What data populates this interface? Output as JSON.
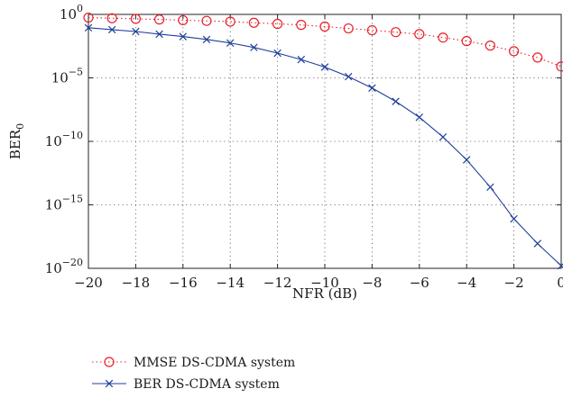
{
  "chart_data": {
    "type": "line",
    "title": "",
    "xlabel": "NFR (dB)",
    "ylabel_main": "BER",
    "ylabel_sub": "0",
    "x": [
      -20,
      -19,
      -18,
      -17,
      -16,
      -15,
      -14,
      -13,
      -12,
      -11,
      -10,
      -9,
      -8,
      -7,
      -6,
      -5,
      -4,
      -3,
      -2,
      -1,
      0
    ],
    "xlim": [
      -20,
      0
    ],
    "x_ticks": [
      -20,
      -18,
      -16,
      -14,
      -12,
      -10,
      -8,
      -6,
      -4,
      -2,
      0
    ],
    "x_tick_labels": [
      "−20",
      "−18",
      "−16",
      "−14",
      "−12",
      "−10",
      "−8",
      "−6",
      "−4",
      "−2",
      "0"
    ],
    "y_scale": "log",
    "ylim": [
      1e-20,
      1
    ],
    "y_ticks": [
      {
        "value": 1,
        "base": "10",
        "exp": "0"
      },
      {
        "value": 1e-05,
        "base": "10",
        "exp": "−5"
      },
      {
        "value": 1e-10,
        "base": "10",
        "exp": "−10"
      },
      {
        "value": 1e-15,
        "base": "10",
        "exp": "−15"
      },
      {
        "value": 1e-20,
        "base": "10",
        "exp": "−20"
      }
    ],
    "grid": true,
    "legend_position": "below",
    "series": [
      {
        "name": "MMSE DS-CDMA system",
        "color": "#e8202a",
        "line_style": "dotted",
        "marker": "circle",
        "values": [
          0.56,
          0.5,
          0.45,
          0.4,
          0.35,
          0.31,
          0.27,
          0.22,
          0.18,
          0.15,
          0.11,
          0.079,
          0.056,
          0.04,
          0.028,
          0.015,
          0.0079,
          0.0035,
          0.00126,
          0.0004,
          7.9e-05
        ]
      },
      {
        "name": "BER DS-CDMA system",
        "color": "#1f3f99",
        "line_style": "solid",
        "marker": "x",
        "values": [
          0.089,
          0.063,
          0.045,
          0.028,
          0.018,
          0.0106,
          0.0056,
          0.0025,
          0.00089,
          0.00028,
          7.1e-05,
          1.26e-05,
          1.6e-06,
          1.4e-07,
          7.9e-09,
          2.2e-10,
          3.5e-12,
          2.5e-14,
          7.9e-17,
          8.9e-19,
          1.6e-20
        ]
      }
    ]
  }
}
